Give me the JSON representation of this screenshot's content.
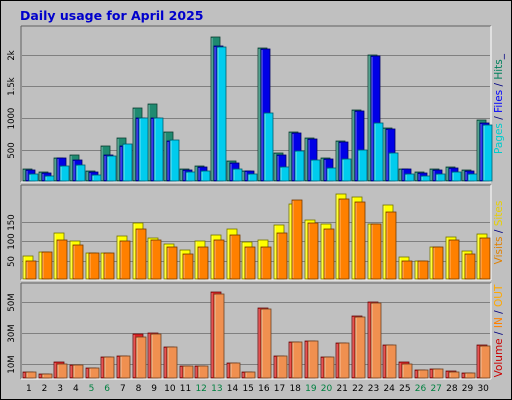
{
  "title": "Daily usage for April 2025",
  "chart_data": [
    {
      "type": "bar",
      "panel": "hits",
      "categories": [
        "1",
        "2",
        "3",
        "4",
        "5",
        "6",
        "7",
        "8",
        "9",
        "10",
        "11",
        "12",
        "13",
        "14",
        "15",
        "16",
        "17",
        "18",
        "19",
        "20",
        "21",
        "22",
        "23",
        "24",
        "25",
        "26",
        "27",
        "28",
        "29",
        "30"
      ],
      "weekend_days": [
        "5",
        "6",
        "12",
        "13",
        "19",
        "20",
        "26",
        "27"
      ],
      "ylim": [
        0,
        2450
      ],
      "y_ticks": [
        500,
        1000,
        1500,
        2000
      ],
      "y_tick_labels": [
        "500",
        "1000",
        "1.5k",
        "2k"
      ],
      "grid": true,
      "legend_parts": [
        {
          "text": "Pages",
          "color": "#00cccc"
        },
        {
          "text": " / ",
          "color": "#000080"
        },
        {
          "text": "Files",
          "color": "#0000ff"
        },
        {
          "text": " / ",
          "color": "#000080"
        },
        {
          "text": "Hits",
          "color": "#00805c"
        },
        {
          "text": "_",
          "color": "#000080"
        }
      ],
      "series": [
        {
          "name": "Hits",
          "color": "#1f8a70",
          "values": [
            200,
            150,
            380,
            420,
            170,
            570,
            690,
            1170,
            1220,
            780,
            210,
            250,
            2270,
            330,
            180,
            2100,
            450,
            780,
            690,
            380,
            650,
            1130,
            1990,
            850,
            210,
            150,
            200,
            230,
            190,
            980
          ]
        },
        {
          "name": "Files",
          "color": "#0000e6",
          "values": [
            190,
            140,
            370,
            340,
            150,
            430,
            560,
            1000,
            1010,
            650,
            190,
            230,
            2130,
            300,
            170,
            2090,
            430,
            770,
            670,
            360,
            630,
            1120,
            1980,
            830,
            200,
            140,
            190,
            220,
            180,
            920
          ]
        },
        {
          "name": "Pages",
          "color": "#00ccee",
          "values": [
            130,
            100,
            250,
            260,
            110,
            410,
            600,
            1000,
            1000,
            660,
            150,
            170,
            2120,
            210,
            130,
            1080,
            230,
            480,
            350,
            220,
            360,
            510,
            930,
            460,
            120,
            90,
            130,
            160,
            130,
            890
          ]
        }
      ]
    },
    {
      "type": "bar",
      "panel": "visits",
      "categories": [
        "1",
        "2",
        "3",
        "4",
        "5",
        "6",
        "7",
        "8",
        "9",
        "10",
        "11",
        "12",
        "13",
        "14",
        "15",
        "16",
        "17",
        "18",
        "19",
        "20",
        "21",
        "22",
        "23",
        "24",
        "25",
        "26",
        "27",
        "28",
        "29",
        "30"
      ],
      "ylim": [
        0,
        245
      ],
      "y_ticks": [
        50,
        100,
        150
      ],
      "y_tick_labels": [
        "50",
        "100",
        "150"
      ],
      "grid": true,
      "legend_parts": [
        {
          "text": "Visits",
          "color": "#e08000"
        },
        {
          "text": " / ",
          "color": "#000080"
        },
        {
          "text": "Sites",
          "color": "#e8d000"
        }
      ],
      "series": [
        {
          "name": "Sites",
          "color": "#ffff00",
          "values": [
            62,
            72,
            122,
            100,
            70,
            70,
            114,
            147,
            108,
            94,
            78,
            100,
            115,
            132,
            98,
            102,
            142,
            196,
            154,
            145,
            223,
            213,
            145,
            194,
            60,
            48,
            84,
            112,
            76,
            118
          ]
        },
        {
          "name": "Visits",
          "color": "#ff8000",
          "values": [
            48,
            72,
            104,
            90,
            70,
            70,
            100,
            132,
            104,
            84,
            68,
            86,
            104,
            116,
            84,
            86,
            122,
            206,
            148,
            132,
            210,
            200,
            145,
            176,
            48,
            48,
            84,
            104,
            68,
            109
          ]
        }
      ]
    },
    {
      "type": "bar",
      "panel": "volume",
      "categories": [
        "1",
        "2",
        "3",
        "4",
        "5",
        "6",
        "7",
        "8",
        "9",
        "10",
        "11",
        "12",
        "13",
        "14",
        "15",
        "16",
        "17",
        "18",
        "19",
        "20",
        "21",
        "22",
        "23",
        "24",
        "25",
        "26",
        "27",
        "28",
        "29",
        "30"
      ],
      "ylim": [
        0,
        62
      ],
      "y_ticks": [
        10,
        30,
        50
      ],
      "y_tick_labels": [
        "10M",
        "30M",
        "50M"
      ],
      "grid": true,
      "legend_parts": [
        {
          "text": "Volume",
          "color": "#cc0000"
        },
        {
          "text": " / ",
          "color": "#000080"
        },
        {
          "text": "IN",
          "color": "#ff8000"
        },
        {
          "text": " / ",
          "color": "#000080"
        },
        {
          "text": "OUT",
          "color": "#ffa800"
        }
      ],
      "series": [
        {
          "name": "Volume",
          "color": "#e02020",
          "values": [
            4.5,
            3,
            11,
            9,
            7,
            14.5,
            15,
            29,
            30,
            20.5,
            8.5,
            8.5,
            56,
            10.5,
            4.5,
            46,
            15,
            24,
            24.5,
            14.5,
            23.5,
            41,
            50,
            22,
            11,
            6,
            6.5,
            5,
            4,
            22
          ]
        },
        {
          "name": "IN",
          "color": "#f09050",
          "values": [
            4.5,
            3,
            10,
            9,
            7,
            14.5,
            15,
            27,
            29,
            20.5,
            8.5,
            8.5,
            55,
            10.5,
            4.5,
            45,
            15,
            24,
            24.5,
            14.5,
            23.5,
            40,
            49,
            22,
            10,
            6,
            6.5,
            4.5,
            4,
            21
          ]
        }
      ]
    }
  ]
}
